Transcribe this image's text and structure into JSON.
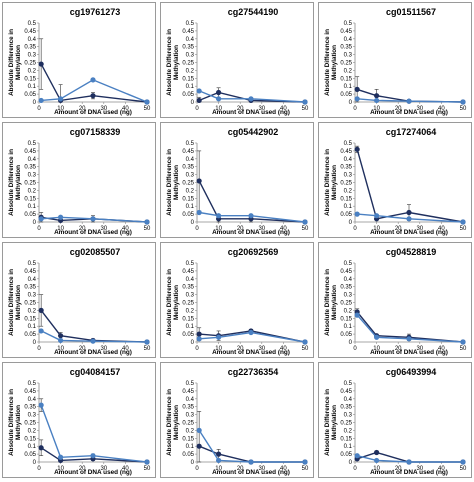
{
  "chart_data": [
    {
      "type": "line",
      "title": "cg19761273",
      "xlabel": "Amount of DNA used (ng)",
      "ylabel": [
        "Absolute Difference in",
        "Methylation"
      ],
      "x": [
        1,
        10,
        25,
        50
      ],
      "xlim": [
        0,
        50
      ],
      "xticks": [
        0,
        10,
        20,
        30,
        40,
        50
      ],
      "ylim": [
        0,
        0.5
      ],
      "yticks": [
        "0",
        "0.05",
        "0.1",
        "0.15",
        "0.2",
        "0.25",
        "0.3",
        "0.35",
        "0.4",
        "0.45",
        "0.5"
      ],
      "series": [
        {
          "color": "#1f2f5e",
          "values": [
            0.24,
            0.01,
            0.04,
            0.0
          ],
          "errors": [
            0.16,
            0.1,
            0.02,
            0.0
          ]
        },
        {
          "color": "#4a80c2",
          "values": [
            0.01,
            0.02,
            0.14,
            0.0
          ],
          "errors": [
            0.0,
            0.0,
            0.0,
            0.0
          ]
        }
      ]
    },
    {
      "type": "line",
      "title": "cg27544190",
      "xlabel": "Amount of DNA used (ng)",
      "ylabel": [
        "Absolute Difference in",
        "Methylation"
      ],
      "x": [
        1,
        10,
        25,
        50
      ],
      "xlim": [
        0,
        50
      ],
      "xticks": [
        0,
        10,
        20,
        30,
        40,
        50
      ],
      "ylim": [
        0,
        0.5
      ],
      "yticks": [
        "0",
        "0.05",
        "0.1",
        "0.15",
        "0.2",
        "0.25",
        "0.3",
        "0.35",
        "0.4",
        "0.45",
        "0.5"
      ],
      "series": [
        {
          "color": "#1f2f5e",
          "values": [
            0.01,
            0.06,
            0.01,
            0.0
          ],
          "errors": [
            0.02,
            0.03,
            0.01,
            0.0
          ]
        },
        {
          "color": "#4a80c2",
          "values": [
            0.07,
            0.02,
            0.02,
            0.0
          ],
          "errors": [
            0.0,
            0.0,
            0.0,
            0.0
          ]
        }
      ]
    },
    {
      "type": "line",
      "title": "cg01511567",
      "xlabel": "Amount of DNA used (ng)",
      "ylabel": [
        "Absolute Difference in",
        "Methylation"
      ],
      "x": [
        1,
        10,
        25,
        50
      ],
      "xlim": [
        0,
        50
      ],
      "xticks": [
        0,
        10,
        20,
        30,
        40,
        50
      ],
      "ylim": [
        0,
        0.5
      ],
      "yticks": [
        "0",
        "0.05",
        "0.1",
        "0.15",
        "0.2",
        "0.25",
        "0.3",
        "0.35",
        "0.4",
        "0.45",
        "0.5"
      ],
      "series": [
        {
          "color": "#1f2f5e",
          "values": [
            0.08,
            0.04,
            0.005,
            0.0
          ],
          "errors": [
            0.08,
            0.04,
            0.005,
            0.0
          ]
        },
        {
          "color": "#4a80c2",
          "values": [
            0.02,
            0.01,
            0.005,
            0.0
          ],
          "errors": [
            0.0,
            0.0,
            0.0,
            0.0
          ]
        }
      ]
    },
    {
      "type": "line",
      "title": "cg07158339",
      "xlabel": "Amount of DNA used (ng)",
      "ylabel": [
        "Absolute Difference in",
        "Methylation"
      ],
      "x": [
        1,
        10,
        25,
        50
      ],
      "xlim": [
        0,
        50
      ],
      "xticks": [
        0,
        10,
        20,
        30,
        40,
        50
      ],
      "ylim": [
        0,
        0.5
      ],
      "yticks": [
        "0",
        "0.05",
        "0.1",
        "0.15",
        "0.2",
        "0.25",
        "0.3",
        "0.35",
        "0.4",
        "0.45",
        "0.5"
      ],
      "series": [
        {
          "color": "#1f2f5e",
          "values": [
            0.03,
            0.01,
            0.02,
            0.0
          ],
          "errors": [
            0.03,
            0.02,
            0.02,
            0.0
          ]
        },
        {
          "color": "#4a80c2",
          "values": [
            0.02,
            0.03,
            0.02,
            0.0
          ],
          "errors": [
            0.0,
            0.0,
            0.0,
            0.0
          ]
        }
      ]
    },
    {
      "type": "line",
      "title": "cg05442902",
      "xlabel": "Amount of DNA used (ng)",
      "ylabel": [
        "Absolute Difference in",
        "Methylation"
      ],
      "x": [
        1,
        10,
        25,
        50
      ],
      "xlim": [
        0,
        50
      ],
      "xticks": [
        0,
        10,
        20,
        30,
        40,
        50
      ],
      "ylim": [
        0,
        0.5
      ],
      "yticks": [
        "0",
        "0.05",
        "0.1",
        "0.15",
        "0.2",
        "0.25",
        "0.3",
        "0.35",
        "0.4",
        "0.45",
        "0.5"
      ],
      "series": [
        {
          "color": "#1f2f5e",
          "values": [
            0.26,
            0.02,
            0.02,
            0.0
          ],
          "errors": [
            0.19,
            0.02,
            0.02,
            0.0
          ]
        },
        {
          "color": "#4a80c2",
          "values": [
            0.06,
            0.04,
            0.04,
            0.0
          ],
          "errors": [
            0.0,
            0.0,
            0.0,
            0.0
          ]
        }
      ]
    },
    {
      "type": "line",
      "title": "cg17274064",
      "xlabel": "Amount of DNA used (ng)",
      "ylabel": [
        "Absolute Difference in",
        "Methylation"
      ],
      "x": [
        1,
        10,
        25,
        50
      ],
      "xlim": [
        0,
        50
      ],
      "xticks": [
        0,
        10,
        20,
        30,
        40,
        50
      ],
      "ylim": [
        0,
        0.5
      ],
      "yticks": [
        "0",
        "0.05",
        "0.1",
        "0.15",
        "0.2",
        "0.25",
        "0.3",
        "0.35",
        "0.4",
        "0.45",
        "0.5"
      ],
      "series": [
        {
          "color": "#1f2f5e",
          "values": [
            0.46,
            0.02,
            0.06,
            0.0
          ],
          "errors": [
            0.02,
            0.0,
            0.05,
            0.0
          ]
        },
        {
          "color": "#4a80c2",
          "values": [
            0.05,
            0.04,
            0.02,
            0.0
          ],
          "errors": [
            0.0,
            0.0,
            0.0,
            0.0
          ]
        }
      ]
    },
    {
      "type": "line",
      "title": "cg02085507",
      "xlabel": "Amount of DNA used (ng)",
      "ylabel": [
        "Absolute Difference in",
        "Methylation"
      ],
      "x": [
        1,
        10,
        25,
        50
      ],
      "xlim": [
        0,
        50
      ],
      "xticks": [
        0,
        10,
        20,
        30,
        40,
        50
      ],
      "ylim": [
        0,
        0.5
      ],
      "yticks": [
        "0",
        "0.05",
        "0.1",
        "0.15",
        "0.2",
        "0.25",
        "0.3",
        "0.35",
        "0.4",
        "0.45",
        "0.5"
      ],
      "series": [
        {
          "color": "#1f2f5e",
          "values": [
            0.2,
            0.04,
            0.01,
            0.0
          ],
          "errors": [
            0.1,
            0.02,
            0.01,
            0.0
          ]
        },
        {
          "color": "#4a80c2",
          "values": [
            0.07,
            0.01,
            0.005,
            0.0
          ],
          "errors": [
            0.0,
            0.0,
            0.0,
            0.0
          ]
        }
      ]
    },
    {
      "type": "line",
      "title": "cg20692569",
      "xlabel": "Amount of DNA used (ng)",
      "ylabel": [
        "Absolute Difference in",
        "Methylation"
      ],
      "x": [
        1,
        10,
        25,
        50
      ],
      "xlim": [
        0,
        50
      ],
      "xticks": [
        0,
        10,
        20,
        30,
        40,
        50
      ],
      "ylim": [
        0,
        0.5
      ],
      "yticks": [
        "0",
        "0.05",
        "0.1",
        "0.15",
        "0.2",
        "0.25",
        "0.3",
        "0.35",
        "0.4",
        "0.45",
        "0.5"
      ],
      "series": [
        {
          "color": "#1f2f5e",
          "values": [
            0.05,
            0.04,
            0.07,
            0.0
          ],
          "errors": [
            0.04,
            0.03,
            0.01,
            0.0
          ]
        },
        {
          "color": "#4a80c2",
          "values": [
            0.02,
            0.03,
            0.06,
            0.0
          ],
          "errors": [
            0.0,
            0.0,
            0.0,
            0.0
          ]
        }
      ]
    },
    {
      "type": "line",
      "title": "cg04528819",
      "xlabel": "Amount of DNA used (ng)",
      "ylabel": [
        "Absolute Difference in",
        "Methylation"
      ],
      "x": [
        1,
        10,
        25,
        50
      ],
      "xlim": [
        0,
        50
      ],
      "xticks": [
        0,
        10,
        20,
        30,
        40,
        50
      ],
      "ylim": [
        0,
        0.5
      ],
      "yticks": [
        "0",
        "0.05",
        "0.1",
        "0.15",
        "0.2",
        "0.25",
        "0.3",
        "0.35",
        "0.4",
        "0.45",
        "0.5"
      ],
      "series": [
        {
          "color": "#1f2f5e",
          "values": [
            0.19,
            0.04,
            0.03,
            0.0
          ],
          "errors": [
            0.02,
            0.0,
            0.02,
            0.0
          ]
        },
        {
          "color": "#4a80c2",
          "values": [
            0.17,
            0.03,
            0.02,
            0.0
          ],
          "errors": [
            0.0,
            0.0,
            0.0,
            0.0
          ]
        }
      ]
    },
    {
      "type": "line",
      "title": "cg04084157",
      "xlabel": "Amount of DNA used (ng)",
      "ylabel": [
        "Absolute Difference in",
        "Methylation"
      ],
      "x": [
        1,
        10,
        25,
        50
      ],
      "xlim": [
        0,
        50
      ],
      "xticks": [
        0,
        10,
        20,
        30,
        40,
        50
      ],
      "ylim": [
        0,
        0.5
      ],
      "yticks": [
        "0",
        "0.05",
        "0.1",
        "0.15",
        "0.2",
        "0.25",
        "0.3",
        "0.35",
        "0.4",
        "0.45",
        "0.5"
      ],
      "series": [
        {
          "color": "#1f2f5e",
          "values": [
            0.09,
            0.01,
            0.02,
            0.0
          ],
          "errors": [
            0.05,
            0.01,
            0.01,
            0.0
          ]
        },
        {
          "color": "#4a80c2",
          "values": [
            0.36,
            0.03,
            0.04,
            0.0
          ],
          "errors": [
            0.04,
            0.0,
            0.01,
            0.0
          ]
        }
      ]
    },
    {
      "type": "line",
      "title": "cg22736354",
      "xlabel": "Amount of DNA used (ng)",
      "ylabel": [
        "Absolute Difference in",
        "Methylation"
      ],
      "x": [
        1,
        10,
        25,
        50
      ],
      "xlim": [
        0,
        50
      ],
      "xticks": [
        0,
        10,
        20,
        30,
        40,
        50
      ],
      "ylim": [
        0,
        0.5
      ],
      "yticks": [
        "0",
        "0.05",
        "0.1",
        "0.15",
        "0.2",
        "0.25",
        "0.3",
        "0.35",
        "0.4",
        "0.45",
        "0.5"
      ],
      "series": [
        {
          "color": "#1f2f5e",
          "values": [
            0.1,
            0.05,
            0.0,
            0.0
          ],
          "errors": [
            0.22,
            0.03,
            0.0,
            0.0
          ]
        },
        {
          "color": "#4a80c2",
          "values": [
            0.2,
            0.01,
            0.0,
            0.0
          ],
          "errors": [
            0.0,
            0.0,
            0.0,
            0.0
          ]
        }
      ]
    },
    {
      "type": "line",
      "title": "cg06493994",
      "xlabel": "Amount of DNA used (ng)",
      "ylabel": [
        "Absolute Difference in",
        "Methylation"
      ],
      "x": [
        1,
        10,
        25,
        50
      ],
      "xlim": [
        0,
        50
      ],
      "xticks": [
        0,
        10,
        20,
        30,
        40,
        50
      ],
      "ylim": [
        0,
        0.5
      ],
      "yticks": [
        "0",
        "0.05",
        "0.1",
        "0.15",
        "0.2",
        "0.25",
        "0.3",
        "0.35",
        "0.4",
        "0.45",
        "0.5"
      ],
      "series": [
        {
          "color": "#1f2f5e",
          "values": [
            0.02,
            0.06,
            0.0,
            0.0
          ],
          "errors": [
            0.01,
            0.01,
            0.0,
            0.0
          ]
        },
        {
          "color": "#4a80c2",
          "values": [
            0.04,
            0.01,
            0.0,
            0.0
          ],
          "errors": [
            0.0,
            0.0,
            0.0,
            0.0
          ]
        }
      ]
    }
  ]
}
